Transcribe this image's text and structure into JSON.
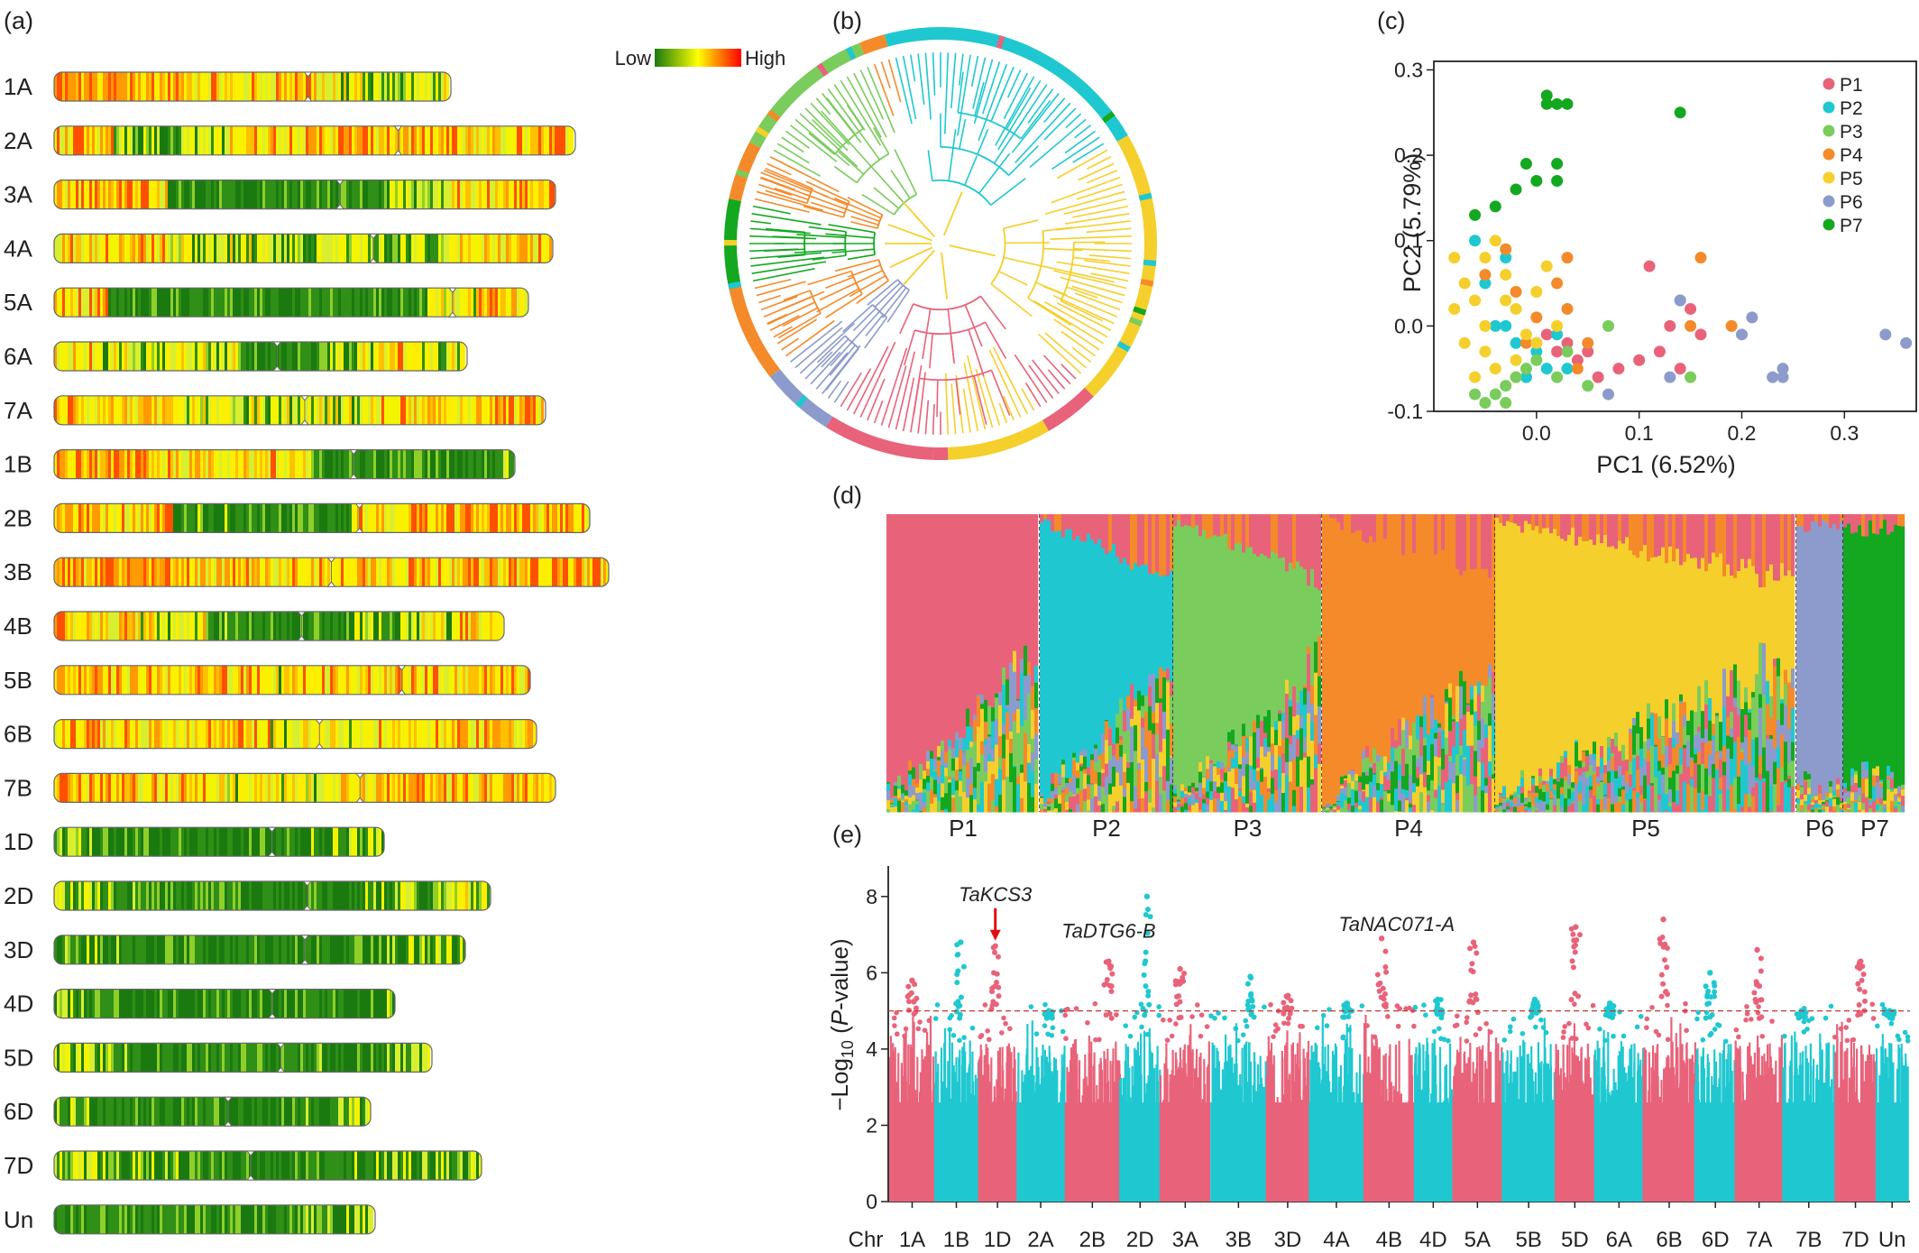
{
  "panel_a": {
    "label": "(a)",
    "legend": {
      "low": "Low",
      "high": "High",
      "colors": [
        "#1a7a10",
        "#ffff00",
        "#ff0000"
      ]
    },
    "chromosomes": [
      {
        "name": "1A",
        "length": 440,
        "centromere": 0.64,
        "density": [
          0.7,
          0.65,
          0.6,
          0.55,
          0.5,
          0.6,
          0.45,
          0.3,
          0.4
        ]
      },
      {
        "name": "2A",
        "length": 578,
        "centromere": 0.66,
        "density": [
          0.55,
          0.3,
          0.35,
          0.55,
          0.6,
          0.6,
          0.55,
          0.5,
          0.6
        ]
      },
      {
        "name": "3A",
        "length": 556,
        "centromere": 0.57,
        "density": [
          0.6,
          0.65,
          0.15,
          0.1,
          0.1,
          0.15,
          0.35,
          0.5,
          0.6
        ]
      },
      {
        "name": "4A",
        "length": 553,
        "centromere": 0.64,
        "density": [
          0.55,
          0.55,
          0.45,
          0.4,
          0.35,
          0.35,
          0.3,
          0.55,
          0.6
        ]
      },
      {
        "name": "5A",
        "length": 526,
        "centromere": 0.84,
        "density": [
          0.55,
          0.15,
          0.1,
          0.1,
          0.1,
          0.1,
          0.15,
          0.45,
          0.55
        ]
      },
      {
        "name": "6A",
        "length": 458,
        "centromere": 0.54,
        "density": [
          0.5,
          0.35,
          0.4,
          0.4,
          0.15,
          0.1,
          0.35,
          0.5,
          0.45
        ]
      },
      {
        "name": "7A",
        "length": 545,
        "centromere": 0.51,
        "density": [
          0.55,
          0.55,
          0.45,
          0.4,
          0.4,
          0.45,
          0.5,
          0.55,
          0.6
        ]
      },
      {
        "name": "1B",
        "length": 511,
        "centromere": 0.65,
        "density": [
          0.6,
          0.6,
          0.55,
          0.55,
          0.5,
          0.15,
          0.1,
          0.15,
          0.2
        ]
      },
      {
        "name": "2B",
        "length": 594,
        "centromere": 0.57,
        "density": [
          0.6,
          0.55,
          0.2,
          0.15,
          0.15,
          0.5,
          0.6,
          0.65,
          0.6
        ]
      },
      {
        "name": "3B",
        "length": 615,
        "centromere": 0.5,
        "density": [
          0.65,
          0.65,
          0.6,
          0.55,
          0.55,
          0.6,
          0.6,
          0.65,
          0.6
        ]
      },
      {
        "name": "4B",
        "length": 499,
        "centromere": 0.55,
        "density": [
          0.55,
          0.5,
          0.45,
          0.2,
          0.15,
          0.15,
          0.35,
          0.45,
          0.55
        ]
      },
      {
        "name": "5B",
        "length": 528,
        "centromere": 0.73,
        "density": [
          0.6,
          0.6,
          0.55,
          0.55,
          0.5,
          0.5,
          0.5,
          0.55,
          0.6
        ]
      },
      {
        "name": "6B",
        "length": 535,
        "centromere": 0.55,
        "density": [
          0.6,
          0.55,
          0.5,
          0.55,
          0.45,
          0.45,
          0.5,
          0.55,
          0.6
        ]
      },
      {
        "name": "7B",
        "length": 556,
        "centromere": 0.61,
        "density": [
          0.6,
          0.55,
          0.5,
          0.45,
          0.45,
          0.55,
          0.6,
          0.55,
          0.6
        ]
      },
      {
        "name": "1D",
        "length": 366,
        "centromere": 0.66,
        "density": [
          0.3,
          0.15,
          0.1,
          0.1,
          0.1,
          0.1,
          0.15,
          0.2,
          0.35
        ]
      },
      {
        "name": "2D",
        "length": 484,
        "centromere": 0.58,
        "density": [
          0.3,
          0.2,
          0.15,
          0.15,
          0.15,
          0.15,
          0.2,
          0.25,
          0.35
        ]
      },
      {
        "name": "3D",
        "length": 456,
        "centromere": 0.61,
        "density": [
          0.3,
          0.2,
          0.15,
          0.1,
          0.1,
          0.15,
          0.2,
          0.25,
          0.3
        ]
      },
      {
        "name": "4D",
        "length": 378,
        "centromere": 0.64,
        "density": [
          0.2,
          0.15,
          0.1,
          0.1,
          0.1,
          0.1,
          0.15,
          0.15,
          0.2
        ]
      },
      {
        "name": "5D",
        "length": 419,
        "centromere": 0.6,
        "density": [
          0.35,
          0.2,
          0.15,
          0.15,
          0.15,
          0.15,
          0.2,
          0.2,
          0.3
        ]
      },
      {
        "name": "6D",
        "length": 351,
        "centromere": 0.55,
        "density": [
          0.25,
          0.15,
          0.1,
          0.1,
          0.1,
          0.1,
          0.15,
          0.2,
          0.3
        ]
      },
      {
        "name": "7D",
        "length": 474,
        "centromere": 0.46,
        "density": [
          0.35,
          0.25,
          0.2,
          0.15,
          0.15,
          0.15,
          0.2,
          0.2,
          0.3
        ]
      },
      {
        "name": "Un",
        "length": 356,
        "centromere": null,
        "density": [
          0.15,
          0.1,
          0.1,
          0.1,
          0.1,
          0.1,
          0.15,
          0.2,
          0.3
        ]
      }
    ]
  },
  "panel_b": {
    "label": "(b)"
  },
  "panel_c": {
    "label": "(c)"
  },
  "panel_d": {
    "label": "(d)"
  },
  "panel_e": {
    "label": "(e)"
  },
  "pop_colors": {
    "P1": "#e8637a",
    "P2": "#1fc8d0",
    "P3": "#7acc5c",
    "P4": "#f48a2a",
    "P5": "#f5cf2b",
    "P6": "#8c9bcc",
    "P7": "#13a81f"
  },
  "chart_data": [
    {
      "type": "scatter",
      "panel": "(c)",
      "xlabel": "PC1 (6.52%)",
      "ylabel": "PC2 (5.79%)",
      "xlim": [
        -0.1,
        0.37
      ],
      "ylim": [
        -0.1,
        0.31
      ],
      "xticks": [
        "0.0",
        "0.1",
        "0.2",
        "0.3"
      ],
      "yticks": [
        "-0.1",
        "0.0",
        "0.1",
        "0.2",
        "0.3"
      ],
      "legend_position": "top-right",
      "series": [
        {
          "name": "P1",
          "color": "#e8637a",
          "points": [
            [
              0.0,
              -0.02
            ],
            [
              0.02,
              -0.03
            ],
            [
              0.03,
              -0.02
            ],
            [
              0.05,
              -0.03
            ],
            [
              0.08,
              -0.05
            ],
            [
              0.11,
              0.07
            ],
            [
              0.12,
              -0.03
            ],
            [
              0.13,
              0.0
            ],
            [
              0.14,
              -0.05
            ],
            [
              0.15,
              0.02
            ],
            [
              0.16,
              -0.01
            ],
            [
              0.1,
              -0.04
            ],
            [
              0.06,
              -0.06
            ],
            [
              0.04,
              -0.04
            ],
            [
              0.01,
              -0.01
            ]
          ]
        },
        {
          "name": "P2",
          "color": "#1fc8d0",
          "points": [
            [
              -0.06,
              0.1
            ],
            [
              -0.05,
              0.05
            ],
            [
              -0.03,
              0.0
            ],
            [
              -0.02,
              -0.02
            ],
            [
              0.0,
              -0.03
            ],
            [
              0.01,
              -0.05
            ],
            [
              -0.01,
              -0.06
            ],
            [
              -0.04,
              0.0
            ],
            [
              0.02,
              -0.01
            ],
            [
              0.14,
              0.03
            ],
            [
              -0.03,
              0.08
            ],
            [
              0.03,
              -0.05
            ]
          ]
        },
        {
          "name": "P3",
          "color": "#7acc5c",
          "points": [
            [
              -0.05,
              -0.09
            ],
            [
              -0.04,
              -0.08
            ],
            [
              -0.03,
              -0.07
            ],
            [
              -0.02,
              -0.06
            ],
            [
              -0.01,
              -0.05
            ],
            [
              0.0,
              -0.04
            ],
            [
              0.02,
              -0.06
            ],
            [
              0.05,
              -0.07
            ],
            [
              0.07,
              0.0
            ],
            [
              0.15,
              -0.06
            ],
            [
              -0.06,
              -0.08
            ],
            [
              -0.03,
              -0.09
            ],
            [
              0.03,
              -0.03
            ]
          ]
        },
        {
          "name": "P4",
          "color": "#f48a2a",
          "points": [
            [
              -0.05,
              0.06
            ],
            [
              -0.03,
              0.09
            ],
            [
              -0.02,
              0.04
            ],
            [
              0.0,
              0.01
            ],
            [
              0.03,
              0.08
            ],
            [
              0.03,
              0.02
            ],
            [
              0.05,
              -0.02
            ],
            [
              0.04,
              -0.05
            ],
            [
              0.16,
              0.08
            ],
            [
              0.15,
              0.0
            ],
            [
              0.19,
              0.0
            ],
            [
              -0.01,
              -0.02
            ],
            [
              0.02,
              0.05
            ]
          ]
        },
        {
          "name": "P5",
          "color": "#f5cf2b",
          "points": [
            [
              -0.08,
              0.08
            ],
            [
              -0.07,
              0.05
            ],
            [
              -0.06,
              0.03
            ],
            [
              -0.05,
              0.0
            ],
            [
              -0.05,
              -0.03
            ],
            [
              -0.04,
              -0.05
            ],
            [
              -0.03,
              0.06
            ],
            [
              -0.02,
              0.02
            ],
            [
              -0.01,
              -0.01
            ],
            [
              0.0,
              0.04
            ],
            [
              0.01,
              0.07
            ],
            [
              -0.07,
              -0.02
            ],
            [
              -0.06,
              -0.06
            ],
            [
              -0.04,
              0.1
            ],
            [
              -0.02,
              -0.04
            ],
            [
              0.0,
              -0.02
            ],
            [
              -0.08,
              0.02
            ],
            [
              -0.03,
              0.03
            ],
            [
              0.02,
              0.0
            ],
            [
              -0.05,
              0.08
            ]
          ]
        },
        {
          "name": "P6",
          "color": "#8c9bcc",
          "points": [
            [
              0.07,
              -0.08
            ],
            [
              0.14,
              0.03
            ],
            [
              0.2,
              -0.01
            ],
            [
              0.21,
              0.01
            ],
            [
              0.23,
              -0.06
            ],
            [
              0.24,
              -0.06
            ],
            [
              0.24,
              -0.05
            ],
            [
              0.34,
              -0.01
            ],
            [
              0.36,
              -0.02
            ],
            [
              0.13,
              -0.06
            ]
          ]
        },
        {
          "name": "P7",
          "color": "#13a81f",
          "points": [
            [
              -0.06,
              0.13
            ],
            [
              -0.04,
              0.14
            ],
            [
              -0.02,
              0.16
            ],
            [
              -0.01,
              0.19
            ],
            [
              0.0,
              0.17
            ],
            [
              0.01,
              0.26
            ],
            [
              0.01,
              0.27
            ],
            [
              0.02,
              0.26
            ],
            [
              0.02,
              0.19
            ],
            [
              0.03,
              0.26
            ],
            [
              0.14,
              0.25
            ],
            [
              0.02,
              0.17
            ]
          ]
        }
      ]
    },
    {
      "type": "bar",
      "panel": "(d)",
      "stacked": true,
      "categories": [
        "P1",
        "P2",
        "P3",
        "P4",
        "P5",
        "P6",
        "P7"
      ],
      "group_widths": [
        170,
        148,
        165,
        192,
        334,
        52,
        70
      ],
      "components": [
        "P1",
        "P2",
        "P3",
        "P4",
        "P5",
        "P6",
        "P7"
      ]
    },
    {
      "type": "scatter",
      "panel": "(e)",
      "subtype": "manhattan",
      "ylabel_prefix": "−Log",
      "ylabel_sub": "10",
      "ylabel_open": " (",
      "ylabel_italic": "P",
      "ylabel_suffix": "-value)",
      "xlabel_prefix": "Chr",
      "ylim": [
        0,
        8.8
      ],
      "yticks": [
        "0",
        "2",
        "4",
        "6",
        "8"
      ],
      "threshold": 5.0,
      "chromosomes": [
        "1A",
        "1B",
        "1D",
        "2A",
        "2B",
        "2D",
        "3A",
        "3B",
        "3D",
        "4A",
        "4B",
        "4D",
        "5A",
        "5B",
        "5D",
        "6A",
        "6B",
        "6D",
        "7A",
        "7B",
        "7D",
        "Un"
      ],
      "widths": [
        44,
        44,
        38,
        48,
        55,
        40,
        50,
        56,
        42,
        55,
        50,
        38,
        50,
        52,
        40,
        48,
        52,
        40,
        47,
        52,
        41,
        32
      ],
      "peak_values": [
        5.8,
        6.8,
        6.7,
        5.0,
        6.3,
        8.0,
        6.1,
        5.9,
        5.4,
        5.2,
        6.9,
        5.3,
        6.8,
        5.3,
        7.2,
        5.2,
        7.4,
        6.0,
        6.6,
        5.0,
        6.3,
        5.0
      ],
      "annotations": [
        {
          "label": "TaKCS3",
          "chromosome": "1D",
          "arrow": true
        },
        {
          "label": "TaDTG6-B",
          "chromosome": "2B",
          "arrow": false
        },
        {
          "label": "TaNAC071-A",
          "chromosome": "4A",
          "arrow": false
        }
      ]
    }
  ]
}
